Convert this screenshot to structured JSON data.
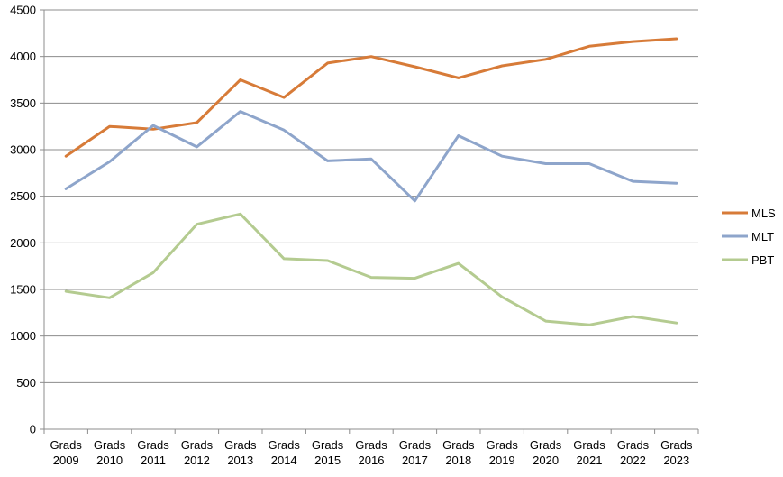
{
  "chart_data": {
    "type": "line",
    "title": "",
    "xlabel": "",
    "ylabel": "",
    "categories": [
      [
        "Grads",
        "2009"
      ],
      [
        "Grads",
        "2010"
      ],
      [
        "Grads",
        "2011"
      ],
      [
        "Grads",
        "2012"
      ],
      [
        "Grads",
        "2013"
      ],
      [
        "Grads",
        "2014"
      ],
      [
        "Grads",
        "2015"
      ],
      [
        "Grads",
        "2016"
      ],
      [
        "Grads",
        "2017"
      ],
      [
        "Grads",
        "2018"
      ],
      [
        "Grads",
        "2019"
      ],
      [
        "Grads",
        "2020"
      ],
      [
        "Grads",
        "2021"
      ],
      [
        "Grads",
        "2022"
      ],
      [
        "Grads",
        "2023"
      ]
    ],
    "ylim": [
      0,
      4500
    ],
    "yticks": [
      "0",
      "500",
      "1000",
      "1500",
      "2000",
      "2500",
      "3000",
      "3500",
      "4000",
      "4500"
    ],
    "grid": true,
    "legend": "right",
    "series": [
      {
        "name": "MLS",
        "color": "#d77b38",
        "values": [
          2930,
          3250,
          3220,
          3290,
          3750,
          3560,
          3930,
          4000,
          3890,
          3770,
          3900,
          3970,
          4110,
          4160,
          4190
        ]
      },
      {
        "name": "MLT",
        "color": "#8ea5cb",
        "values": [
          2580,
          2870,
          3260,
          3030,
          3410,
          3210,
          2880,
          2900,
          2450,
          3150,
          2930,
          2850,
          2850,
          2660,
          2640
        ]
      },
      {
        "name": "PBT",
        "color": "#b4cb90",
        "values": [
          1480,
          1410,
          1680,
          2200,
          2310,
          1830,
          1810,
          1630,
          1620,
          1780,
          1420,
          1160,
          1120,
          1210,
          1140
        ]
      }
    ]
  }
}
